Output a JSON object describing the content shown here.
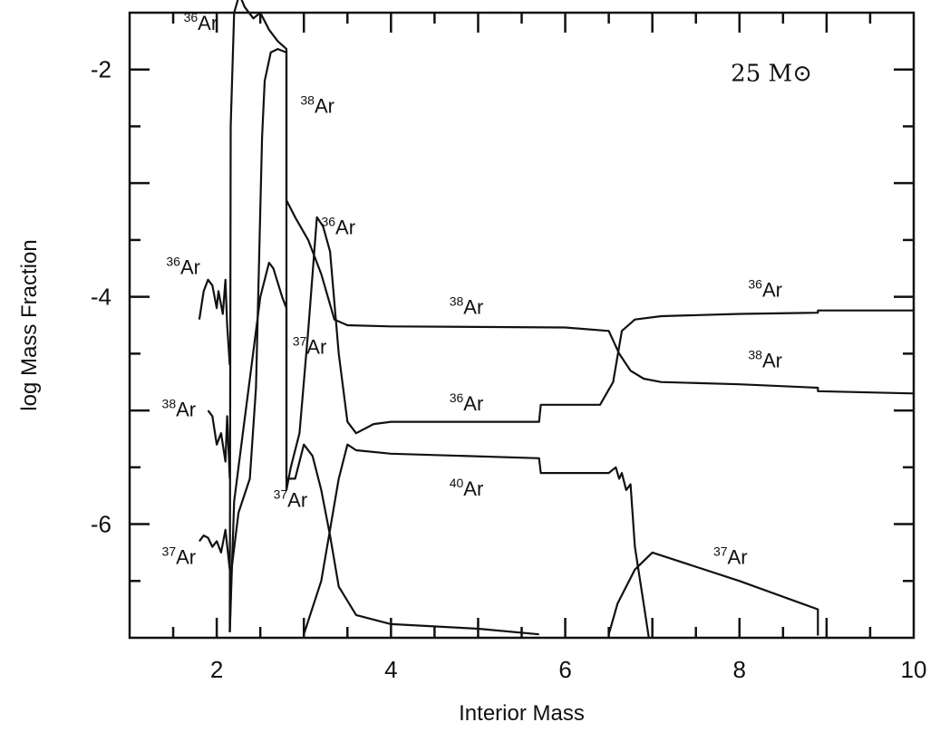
{
  "chart_data": {
    "type": "line",
    "title": "",
    "xlabel": "Interior Mass",
    "ylabel": "log Mass Fraction",
    "xlim": [
      1,
      10
    ],
    "ylim": [
      -7,
      -1.5
    ],
    "xticks": [
      2,
      4,
      6,
      8,
      10
    ],
    "yticks": [
      -6,
      -4,
      -2
    ],
    "annotation": "25 M⊙",
    "grid": false,
    "series": [
      {
        "isotope": "36",
        "element": "Ar",
        "points": [
          [
            2.15,
            -6.95
          ],
          [
            2.16,
            -2.5
          ],
          [
            2.2,
            -1.5
          ],
          [
            2.26,
            -1.34
          ],
          [
            2.32,
            -1.45
          ],
          [
            2.42,
            -1.55
          ],
          [
            2.5,
            -1.5
          ],
          [
            2.6,
            -1.65
          ],
          [
            2.7,
            -1.75
          ],
          [
            2.8,
            -1.82
          ],
          [
            2.8,
            -3.15
          ],
          [
            2.9,
            -3.3
          ],
          [
            3.05,
            -3.5
          ],
          [
            3.2,
            -3.8
          ],
          [
            3.35,
            -4.2
          ],
          [
            3.5,
            -4.25
          ],
          [
            4.0,
            -4.26
          ],
          [
            6.0,
            -4.27
          ],
          [
            6.5,
            -4.3
          ],
          [
            6.62,
            -4.5
          ],
          [
            6.75,
            -4.65
          ],
          [
            6.9,
            -4.72
          ],
          [
            7.1,
            -4.75
          ],
          [
            8.0,
            -4.77
          ],
          [
            8.9,
            -4.8
          ],
          [
            8.9,
            -4.83
          ],
          [
            10.0,
            -4.85
          ]
        ]
      },
      {
        "isotope": "38",
        "element": "Ar",
        "points": [
          [
            2.15,
            -6.95
          ],
          [
            2.17,
            -6.4
          ],
          [
            2.25,
            -5.9
          ],
          [
            2.38,
            -5.6
          ],
          [
            2.45,
            -4.8
          ],
          [
            2.52,
            -2.6
          ],
          [
            2.55,
            -2.1
          ],
          [
            2.62,
            -1.85
          ],
          [
            2.7,
            -1.82
          ],
          [
            2.8,
            -1.85
          ],
          [
            2.8,
            -5.7
          ],
          [
            2.85,
            -5.5
          ],
          [
            2.95,
            -5.2
          ],
          [
            3.05,
            -4.3
          ],
          [
            3.15,
            -3.3
          ],
          [
            3.22,
            -3.38
          ],
          [
            3.3,
            -3.6
          ],
          [
            3.4,
            -4.5
          ],
          [
            3.5,
            -5.1
          ],
          [
            3.6,
            -5.2
          ],
          [
            3.8,
            -5.12
          ],
          [
            4.0,
            -5.1
          ],
          [
            5.7,
            -5.1
          ],
          [
            5.72,
            -4.95
          ],
          [
            6.4,
            -4.95
          ],
          [
            6.55,
            -4.75
          ],
          [
            6.65,
            -4.3
          ],
          [
            6.8,
            -4.2
          ],
          [
            7.1,
            -4.17
          ],
          [
            8.0,
            -4.15
          ],
          [
            8.9,
            -4.14
          ],
          [
            8.9,
            -4.12
          ],
          [
            10.0,
            -4.12
          ]
        ]
      },
      {
        "isotope": "37",
        "element": "Ar",
        "points": [
          [
            2.15,
            -6.95
          ],
          [
            2.2,
            -5.8
          ],
          [
            2.3,
            -5.2
          ],
          [
            2.4,
            -4.6
          ],
          [
            2.5,
            -4.0
          ],
          [
            2.6,
            -3.7
          ],
          [
            2.65,
            -3.75
          ],
          [
            2.75,
            -4.0
          ],
          [
            2.8,
            -4.1
          ],
          [
            2.8,
            -5.6
          ],
          [
            2.9,
            -5.6
          ],
          [
            3.0,
            -5.3
          ],
          [
            3.1,
            -5.4
          ],
          [
            3.2,
            -5.7
          ],
          [
            3.3,
            -6.1
          ],
          [
            3.4,
            -6.55
          ],
          [
            3.6,
            -6.8
          ],
          [
            4.0,
            -6.88
          ],
          [
            5.0,
            -6.92
          ],
          [
            5.7,
            -6.97
          ]
        ]
      },
      {
        "isotope": "40",
        "element": "Ar",
        "points": [
          [
            3.0,
            -6.97
          ],
          [
            3.2,
            -6.5
          ],
          [
            3.4,
            -5.6
          ],
          [
            3.5,
            -5.3
          ],
          [
            3.6,
            -5.35
          ],
          [
            4.0,
            -5.38
          ],
          [
            5.7,
            -5.42
          ],
          [
            5.72,
            -5.55
          ],
          [
            6.5,
            -5.55
          ],
          [
            6.58,
            -5.5
          ],
          [
            6.62,
            -5.6
          ],
          [
            6.65,
            -5.55
          ],
          [
            6.7,
            -5.7
          ],
          [
            6.75,
            -5.65
          ],
          [
            6.8,
            -6.2
          ],
          [
            6.9,
            -6.7
          ],
          [
            6.96,
            -7.0
          ]
        ]
      },
      {
        "isotope": "37",
        "element": "Ar",
        "points": [
          [
            6.5,
            -6.97
          ],
          [
            6.6,
            -6.7
          ],
          [
            6.8,
            -6.4
          ],
          [
            7.0,
            -6.25
          ],
          [
            7.2,
            -6.3
          ],
          [
            8.0,
            -6.5
          ],
          [
            8.9,
            -6.75
          ],
          [
            8.9,
            -6.98
          ]
        ]
      },
      {
        "isotope": "36",
        "element": "Ar",
        "points": [
          [
            1.8,
            -4.2
          ],
          [
            1.85,
            -3.95
          ],
          [
            1.9,
            -3.85
          ],
          [
            1.95,
            -3.9
          ],
          [
            2.0,
            -4.1
          ],
          [
            2.02,
            -3.95
          ],
          [
            2.07,
            -4.15
          ],
          [
            2.1,
            -3.85
          ],
          [
            2.12,
            -4.25
          ],
          [
            2.15,
            -4.6
          ]
        ]
      },
      {
        "isotope": "38",
        "element": "Ar",
        "points": [
          [
            1.9,
            -5.0
          ],
          [
            1.95,
            -5.05
          ],
          [
            2.0,
            -5.3
          ],
          [
            2.05,
            -5.2
          ],
          [
            2.1,
            -5.45
          ],
          [
            2.12,
            -5.05
          ],
          [
            2.15,
            -5.6
          ]
        ]
      },
      {
        "isotope": "37",
        "element": "Ar",
        "points": [
          [
            1.8,
            -6.15
          ],
          [
            1.85,
            -6.1
          ],
          [
            1.9,
            -6.12
          ],
          [
            1.95,
            -6.2
          ],
          [
            2.0,
            -6.15
          ],
          [
            2.05,
            -6.25
          ],
          [
            2.1,
            -6.05
          ],
          [
            2.15,
            -6.4
          ]
        ]
      }
    ],
    "labels": [
      {
        "isotope": "36",
        "element": "Ar",
        "x": 1.62,
        "y": -1.65
      },
      {
        "isotope": "38",
        "element": "Ar",
        "x": 2.96,
        "y": -2.38
      },
      {
        "isotope": "36",
        "element": "Ar",
        "x": 3.2,
        "y": -3.45
      },
      {
        "isotope": "36",
        "element": "Ar",
        "x": 1.42,
        "y": -3.8
      },
      {
        "isotope": "38",
        "element": "Ar",
        "x": 4.67,
        "y": -4.15
      },
      {
        "isotope": "36",
        "element": "Ar",
        "x": 8.1,
        "y": -4.0
      },
      {
        "isotope": "37",
        "element": "Ar",
        "x": 2.87,
        "y": -4.5
      },
      {
        "isotope": "38",
        "element": "Ar",
        "x": 8.1,
        "y": -4.62
      },
      {
        "isotope": "36",
        "element": "Ar",
        "x": 4.67,
        "y": -5.0
      },
      {
        "isotope": "38",
        "element": "Ar",
        "x": 1.37,
        "y": -5.05
      },
      {
        "isotope": "40",
        "element": "Ar",
        "x": 4.67,
        "y": -5.75
      },
      {
        "isotope": "37",
        "element": "Ar",
        "x": 2.65,
        "y": -5.85
      },
      {
        "isotope": "37",
        "element": "Ar",
        "x": 7.7,
        "y": -6.35
      },
      {
        "isotope": "37",
        "element": "Ar",
        "x": 1.37,
        "y": -6.35
      }
    ]
  }
}
